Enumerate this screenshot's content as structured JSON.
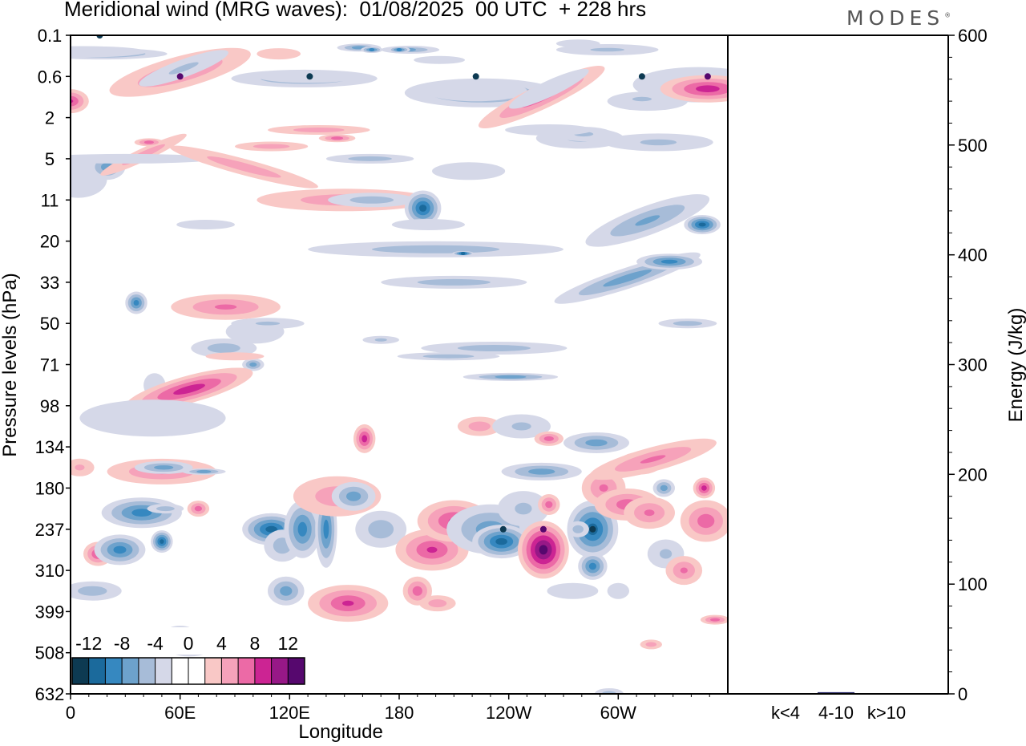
{
  "header": {
    "title": "Meridional wind (MRG waves):  01/08/2025  00 UTC  + 228 hrs",
    "brand": "MODES",
    "brand_mark": "®"
  },
  "chart_data": [
    {
      "type": "heatmap",
      "title": "Meridional wind (MRG waves)",
      "xlabel": "Longitude",
      "ylabel": "Pressure levels (hPa)",
      "x_ticks": [
        "0",
        "60E",
        "120E",
        "180",
        "120W",
        "60W"
      ],
      "x_tick_degrees": [
        0,
        60,
        120,
        180,
        240,
        300
      ],
      "x_range_degrees": [
        0,
        360
      ],
      "y_ticks": [
        "0.1",
        "0.6",
        "2",
        "5",
        "11",
        "20",
        "33",
        "50",
        "71",
        "98",
        "134",
        "180",
        "237",
        "310",
        "399",
        "508",
        "632"
      ],
      "colorbar": {
        "labels": [
          "-12",
          "-8",
          "-4",
          "0",
          "4",
          "8",
          "12"
        ],
        "colors": [
          "#0d3a52",
          "#1b6a9c",
          "#3688c0",
          "#6da2cc",
          "#a7bcd8",
          "#d5d8e8",
          "#ffffff",
          "#ffffff",
          "#f9c8c6",
          "#f6a2ba",
          "#ec6aa6",
          "#cc2493",
          "#971887",
          "#56086e"
        ]
      },
      "features": [
        {
          "lon": 16,
          "level": "0.1",
          "value": -12
        },
        {
          "lon": 60,
          "level": "0.6",
          "value": 10
        },
        {
          "lon": 131,
          "level": "0.6",
          "value": -10
        },
        {
          "lon": 222,
          "level": "0.6",
          "value": -12
        },
        {
          "lon": 313,
          "level": "0.6",
          "value": -10
        },
        {
          "lon": 349,
          "level": "0.6",
          "value": 14
        },
        {
          "lon": 259,
          "level": "237",
          "value": 14
        },
        {
          "lon": 237,
          "level": "237",
          "value": -10
        },
        {
          "lon": 286,
          "level": "237",
          "value": -10
        }
      ]
    },
    {
      "type": "bar",
      "title": "Energy",
      "categories": [
        "k<4",
        "4-10",
        "k>10"
      ],
      "values": [
        0.3,
        1.5,
        0.3
      ],
      "ylabel": "Energy (J/kg)",
      "ylim": [
        0,
        600
      ],
      "y_ticks": [
        "0",
        "100",
        "200",
        "300",
        "400",
        "500",
        "600"
      ],
      "bar_color": "#2e2e6e"
    }
  ]
}
